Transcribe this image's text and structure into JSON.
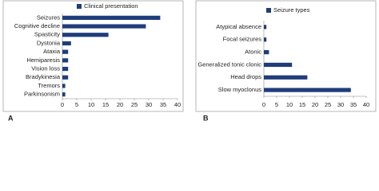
{
  "chart_data": [
    {
      "type": "bar",
      "orientation": "horizontal",
      "panel_label": "A",
      "categories": [
        "Seizures",
        "Cognitive decline",
        "Spasticity",
        "Dystonia",
        "Ataxia",
        "Hemiparesis",
        "Vision loss",
        "Bradykinesia",
        "Tremors",
        "Parkinsonism"
      ],
      "series": [
        {
          "name": "Clinical presentation",
          "color": "#1f3d7a",
          "values": [
            34,
            29,
            16,
            3,
            2,
            2,
            2,
            2,
            1,
            1
          ]
        }
      ],
      "xlim": [
        0,
        40
      ],
      "xticks": [
        0,
        5,
        10,
        15,
        20,
        25,
        30,
        35,
        40
      ]
    },
    {
      "type": "bar",
      "orientation": "horizontal",
      "panel_label": "B",
      "categories": [
        "Atypical absence",
        "Focal seizures",
        "Atonic",
        "Generalized tonic clonic",
        "Head drops",
        "Slow myoclonus"
      ],
      "series": [
        {
          "name": "Seizure types",
          "color": "#1f3d7a",
          "values": [
            1,
            1,
            2,
            11,
            17,
            34
          ]
        }
      ],
      "xlim": [
        0,
        40
      ],
      "xticks": [
        0,
        5,
        10,
        15,
        20,
        25,
        30,
        35,
        40
      ]
    }
  ]
}
